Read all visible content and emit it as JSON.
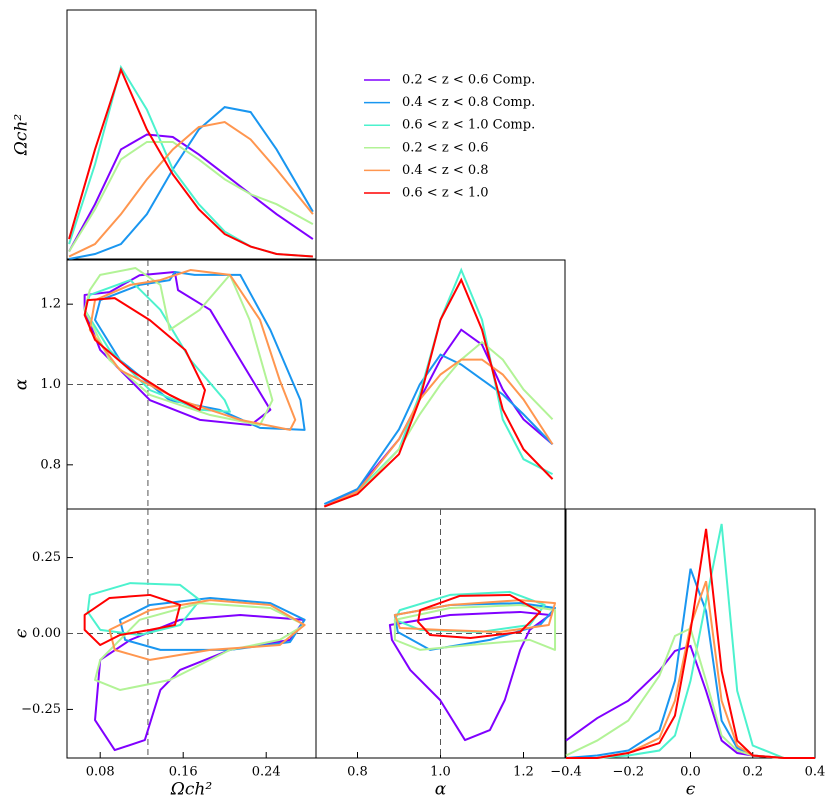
{
  "legend": {
    "labels": [
      "0.2 < z < 0.6 Comp.",
      "0.4 < z < 0.8 Comp.",
      "0.6 < z < 1.0 Comp.",
      "0.2 < z < 0.6",
      "0.4 < z < 0.8",
      "0.6 < z < 1.0"
    ],
    "colors": [
      "#8000ff",
      "#1996f0",
      "#4cf2ce",
      "#b2f396",
      "#ff964f",
      "#ff0000"
    ]
  },
  "chart_data": [
    {
      "type": "line",
      "ylabel": "Ωch²",
      "xlim": [
        0.048,
        0.288
      ],
      "ylim": [
        0,
        1
      ],
      "x": [
        0.05,
        0.075,
        0.1,
        0.125,
        0.15,
        0.175,
        0.2,
        0.225,
        0.25,
        0.285
      ],
      "series": [
        {
          "values": [
            0.03,
            0.22,
            0.44,
            0.5,
            0.49,
            0.42,
            0.34,
            0.26,
            0.18,
            0.08
          ]
        },
        {
          "values": [
            0,
            0.02,
            0.06,
            0.18,
            0.36,
            0.52,
            0.61,
            0.59,
            0.44,
            0.19
          ]
        },
        {
          "values": [
            0.06,
            0.38,
            0.77,
            0.6,
            0.36,
            0.22,
            0.11,
            0.05,
            0.02,
            0.01
          ]
        },
        {
          "values": [
            0.03,
            0.2,
            0.4,
            0.47,
            0.47,
            0.4,
            0.32,
            0.26,
            0.22,
            0.14
          ]
        },
        {
          "values": [
            0.01,
            0.06,
            0.18,
            0.32,
            0.44,
            0.53,
            0.55,
            0.48,
            0.36,
            0.18
          ]
        },
        {
          "values": [
            0.08,
            0.44,
            0.76,
            0.52,
            0.34,
            0.2,
            0.1,
            0.05,
            0.02,
            0.01
          ]
        }
      ]
    },
    {
      "type": "contour",
      "ylabel": "α",
      "xlim": [
        0.048,
        0.288
      ],
      "ylim": [
        0.69,
        1.31
      ],
      "yticks": [
        0.8,
        {
          "value": 1,
          "label": "1.0"
        },
        1.2
      ],
      "xref": 0.126,
      "yref": 1,
      "series": [
        {
          "x": [
            0.065,
            0.089,
            0.118,
            0.152,
            0.155,
            0.186,
            0.215,
            0.244,
            0.225,
            0.176,
            0.128,
            0.08,
            0.065
          ],
          "y": [
            1.223,
            1.23,
            1.272,
            1.28,
            1.235,
            1.186,
            1.061,
            0.937,
            0.899,
            0.912,
            0.961,
            1.086,
            1.186
          ]
        },
        {
          "x": [
            0.08,
            0.118,
            0.147,
            0.152,
            0.171,
            0.215,
            0.244,
            0.273,
            0.277,
            0.234,
            0.195,
            0.147,
            0.099,
            0.075
          ],
          "y": [
            1.21,
            1.248,
            1.26,
            1.28,
            1.273,
            1.273,
            1.136,
            0.961,
            0.887,
            0.892,
            0.937,
            0.961,
            1.061,
            1.161
          ]
        },
        {
          "x": [
            0.07,
            0.109,
            0.138,
            0.167,
            0.2,
            0.205,
            0.176,
            0.128,
            0.089,
            0.065
          ],
          "y": [
            1.223,
            1.26,
            1.186,
            1.061,
            0.961,
            0.932,
            0.937,
            0.986,
            1.086,
            1.186
          ]
        },
        {
          "x": [
            0.08,
            0.114,
            0.138,
            0.147,
            0.176,
            0.205,
            0.224,
            0.246,
            0.234,
            0.186,
            0.128,
            0.089,
            0.065,
            0.07
          ],
          "y": [
            1.273,
            1.29,
            1.248,
            1.136,
            1.186,
            1.273,
            1.161,
            0.961,
            0.899,
            0.924,
            0.974,
            1.061,
            1.186,
            1.235
          ]
        },
        {
          "x": [
            0.075,
            0.109,
            0.138,
            0.167,
            0.205,
            0.234,
            0.253,
            0.268,
            0.263,
            0.215,
            0.157,
            0.099,
            0.07
          ],
          "y": [
            1.21,
            1.248,
            1.26,
            1.285,
            1.273,
            1.161,
            1.011,
            0.912,
            0.887,
            0.912,
            0.961,
            1.036,
            1.136
          ]
        },
        {
          "x": [
            0.068,
            0.094,
            0.128,
            0.162,
            0.181,
            0.176,
            0.147,
            0.109,
            0.075,
            0.065
          ],
          "y": [
            1.21,
            1.215,
            1.16,
            1.086,
            0.986,
            0.937,
            0.974,
            1.036,
            1.111,
            1.173
          ]
        }
      ]
    },
    {
      "type": "line",
      "xlim": [
        0.7,
        1.3
      ],
      "ylim": [
        0,
        1
      ],
      "x": [
        0.72,
        0.8,
        0.9,
        0.95,
        1.0,
        1.05,
        1.1,
        1.15,
        1.2,
        1.27
      ],
      "series": [
        {
          "values": [
            0.01,
            0.08,
            0.28,
            0.44,
            0.6,
            0.72,
            0.66,
            0.48,
            0.36,
            0.26
          ]
        },
        {
          "values": [
            0.02,
            0.08,
            0.32,
            0.5,
            0.62,
            0.58,
            0.52,
            0.46,
            0.38,
            0.26
          ]
        },
        {
          "values": [
            0.01,
            0.07,
            0.24,
            0.46,
            0.76,
            0.96,
            0.76,
            0.36,
            0.2,
            0.14
          ]
        },
        {
          "values": [
            0.01,
            0.06,
            0.24,
            0.38,
            0.5,
            0.6,
            0.67,
            0.6,
            0.48,
            0.36
          ]
        },
        {
          "values": [
            0.01,
            0.07,
            0.28,
            0.44,
            0.54,
            0.6,
            0.6,
            0.54,
            0.44,
            0.26
          ]
        },
        {
          "values": [
            0.01,
            0.06,
            0.22,
            0.44,
            0.76,
            0.92,
            0.72,
            0.4,
            0.24,
            0.12
          ]
        }
      ]
    },
    {
      "type": "contour",
      "xlabel": "Ωch²",
      "ylabel": "ϵ",
      "xlim": [
        0.048,
        0.288
      ],
      "ylim": [
        -0.41,
        0.41
      ],
      "xticks": [
        0.08,
        0.16,
        0.24
      ],
      "yticks": [
        {
          "value": -0.25,
          "label": "−0.25"
        },
        {
          "value": 0,
          "label": "0.00"
        },
        0.25
      ],
      "xref": 0.126,
      "yref": 0,
      "series": [
        {
          "x": [
            0.08,
            0.109,
            0.157,
            0.215,
            0.277,
            0.263,
            0.205,
            0.157,
            0.138,
            0.123,
            0.094,
            0.075
          ],
          "y": [
            -0.087,
            -0.021,
            0.045,
            0.061,
            0.045,
            -0.021,
            -0.054,
            -0.12,
            -0.186,
            -0.351,
            -0.384,
            -0.285
          ]
        },
        {
          "x": [
            0.099,
            0.128,
            0.186,
            0.244,
            0.277,
            0.263,
            0.205,
            0.138,
            0.104
          ],
          "y": [
            0.045,
            0.094,
            0.117,
            0.1,
            0.045,
            -0.028,
            -0.054,
            -0.054,
            -0.021
          ]
        },
        {
          "x": [
            0.07,
            0.109,
            0.157,
            0.176,
            0.157,
            0.118,
            0.08,
            0.068
          ],
          "y": [
            0.127,
            0.166,
            0.16,
            0.11,
            0.028,
            -0.005,
            0.012,
            0.071
          ]
        },
        {
          "x": [
            0.08,
            0.118,
            0.176,
            0.244,
            0.277,
            0.253,
            0.205,
            0.147,
            0.099,
            0.075
          ],
          "y": [
            -0.087,
            0.045,
            0.1,
            0.084,
            0.028,
            -0.021,
            -0.054,
            -0.153,
            -0.186,
            -0.153
          ]
        },
        {
          "x": [
            0.089,
            0.128,
            0.186,
            0.244,
            0.277,
            0.253,
            0.186,
            0.128,
            0.094
          ],
          "y": [
            0.012,
            0.077,
            0.11,
            0.094,
            0.028,
            -0.038,
            -0.054,
            -0.087,
            -0.054
          ]
        },
        {
          "x": [
            0.065,
            0.089,
            0.128,
            0.157,
            0.152,
            0.128,
            0.099,
            0.08,
            0.065
          ],
          "y": [
            0.061,
            0.117,
            0.127,
            0.094,
            0.028,
            0.012,
            -0.005,
            -0.038,
            0.012
          ]
        }
      ]
    },
    {
      "type": "contour",
      "xlabel": "α",
      "xlim": [
        0.7,
        1.3
      ],
      "ylim": [
        -0.41,
        0.41
      ],
      "xticks": [
        0.8,
        {
          "value": 1,
          "label": "1.0"
        },
        1.2
      ],
      "xref": 1,
      "yref": 0,
      "series": [
        {
          "x": [
            0.878,
            1.023,
            1.192,
            1.264,
            1.215,
            1.192,
            1.155,
            1.119,
            1.059,
            0.999,
            0.927,
            0.883
          ],
          "y": [
            0.028,
            0.061,
            0.071,
            0.061,
            0.012,
            -0.054,
            -0.219,
            -0.318,
            -0.351,
            -0.219,
            -0.12,
            -0.021
          ]
        },
        {
          "x": [
            0.89,
            1.023,
            1.192,
            1.276,
            1.24,
            1.119,
            0.975,
            0.897
          ],
          "y": [
            0.061,
            0.094,
            0.1,
            0.084,
            0.028,
            -0.021,
            -0.054,
            0.005
          ]
        },
        {
          "x": [
            0.902,
            1.023,
            1.167,
            1.251,
            1.215,
            1.095,
            0.951,
            0.89
          ],
          "y": [
            0.077,
            0.127,
            0.137,
            0.094,
            0.028,
            0.005,
            0.012,
            0.045
          ]
        },
        {
          "x": [
            0.89,
            1.023,
            1.192,
            1.276,
            1.276,
            1.215,
            1.071,
            0.951,
            0.89
          ],
          "y": [
            0.045,
            0.084,
            0.094,
            0.077,
            -0.054,
            -0.021,
            -0.038,
            -0.054,
            -0.021
          ]
        },
        {
          "x": [
            0.89,
            1.023,
            1.192,
            1.276,
            1.261,
            1.143,
            0.999,
            0.902
          ],
          "y": [
            0.061,
            0.094,
            0.11,
            0.1,
            0.028,
            0.005,
            0.012,
            0.018
          ]
        },
        {
          "x": [
            0.951,
            1.047,
            1.167,
            1.24,
            1.192,
            1.072,
            0.975,
            0.946
          ],
          "y": [
            0.077,
            0.124,
            0.127,
            0.071,
            0.005,
            -0.015,
            -0.005,
            0.038
          ]
        }
      ]
    },
    {
      "type": "line",
      "xlabel": "ϵ",
      "xlim": [
        -0.4,
        0.4
      ],
      "ylim": [
        0,
        1
      ],
      "xticks": [
        {
          "value": -0.4,
          "label": "−0.4"
        },
        {
          "value": -0.2,
          "label": "−0.2"
        },
        {
          "value": 0,
          "label": "0.0"
        },
        0.2,
        0.4
      ],
      "x": [
        -0.4,
        -0.3,
        -0.2,
        -0.1,
        -0.05,
        0,
        0.05,
        0.1,
        0.15,
        0.2,
        0.3,
        0.4
      ],
      "series": [
        {
          "values": [
            0.07,
            0.16,
            0.23,
            0.35,
            0.43,
            0.45,
            0.27,
            0.07,
            0.02,
            0.01,
            0,
            0
          ]
        },
        {
          "values": [
            0,
            0.01,
            0.03,
            0.11,
            0.31,
            0.76,
            0.59,
            0.15,
            0.04,
            0.01,
            0,
            0
          ]
        },
        {
          "values": [
            0,
            0,
            0.01,
            0.03,
            0.09,
            0.31,
            0.63,
            0.94,
            0.27,
            0.05,
            0,
            0
          ]
        },
        {
          "values": [
            0.01,
            0.07,
            0.15,
            0.33,
            0.49,
            0.52,
            0.31,
            0.09,
            0.03,
            0.01,
            0,
            0
          ]
        },
        {
          "values": [
            0,
            0,
            0.02,
            0.08,
            0.23,
            0.53,
            0.71,
            0.23,
            0.05,
            0.01,
            0,
            0
          ]
        },
        {
          "values": [
            0,
            0,
            0.02,
            0.06,
            0.17,
            0.51,
            0.92,
            0.35,
            0.07,
            0.01,
            0,
            0
          ]
        }
      ]
    }
  ]
}
